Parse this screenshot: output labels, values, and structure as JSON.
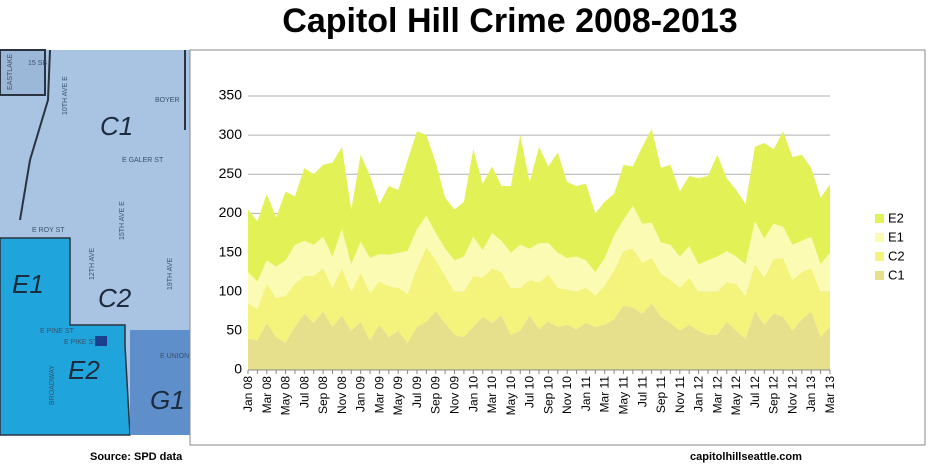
{
  "chart_data": {
    "type": "stacked-area",
    "title": "Capitol Hill Crime 2008-2013",
    "source": "Source: SPD data",
    "credit": "capitolhillseattle.com",
    "categories": [
      "Jan 08",
      null,
      "Mar 08",
      null,
      "May 08",
      null,
      "Jul 08",
      null,
      "Sep 08",
      null,
      "Nov 08",
      null,
      "Jan 09",
      null,
      "Mar 09",
      null,
      "May 09",
      null,
      "Jul 09",
      null,
      "Sep 09",
      null,
      "Nov 09",
      null,
      "Jan 10",
      null,
      "Mar 10",
      null,
      "May 10",
      null,
      "Jul 10",
      null,
      "Sep 10",
      null,
      "Nov 10",
      null,
      "Jan 11",
      null,
      "Mar 11",
      null,
      "May 11",
      null,
      "Jul 11",
      null,
      "Sep 11",
      null,
      "Nov 11",
      null,
      "Jan 12",
      null,
      "Mar 12",
      null,
      "May 12",
      null,
      "Jul 12",
      null,
      "Sep 12",
      null,
      "Nov 12",
      null,
      "Jan 13",
      null,
      "Mar 13"
    ],
    "series": [
      {
        "name": "C1",
        "color": "#e6e08c",
        "values": [
          40,
          38,
          60,
          42,
          35,
          55,
          72,
          60,
          75,
          55,
          70,
          50,
          62,
          38,
          58,
          42,
          50,
          35,
          55,
          62,
          75,
          60,
          45,
          42,
          55,
          68,
          60,
          70,
          45,
          50,
          70,
          52,
          62,
          55,
          58,
          52,
          60,
          55,
          58,
          65,
          82,
          80,
          72,
          85,
          68,
          60,
          50,
          58,
          50,
          45,
          45,
          62,
          50,
          40,
          75,
          58,
          72,
          68,
          50,
          65,
          75,
          42,
          55
        ]
      },
      {
        "name": "C2",
        "color": "#f4f37c",
        "values": [
          45,
          40,
          50,
          50,
          60,
          55,
          48,
          60,
          55,
          50,
          60,
          50,
          62,
          60,
          55,
          65,
          55,
          62,
          75,
          95,
          65,
          60,
          55,
          58,
          65,
          50,
          70,
          55,
          60,
          55,
          45,
          60,
          60,
          50,
          45,
          48,
          45,
          40,
          50,
          62,
          70,
          75,
          65,
          58,
          55,
          55,
          55,
          60,
          50,
          55,
          55,
          50,
          60,
          55,
          60,
          60,
          70,
          75,
          65,
          60,
          55,
          58,
          45
        ]
      },
      {
        "name": "E1",
        "color": "#fbfbb4",
        "values": [
          40,
          35,
          30,
          40,
          45,
          50,
          45,
          40,
          40,
          40,
          50,
          35,
          40,
          45,
          35,
          40,
          45,
          55,
          50,
          40,
          35,
          35,
          40,
          45,
          50,
          35,
          45,
          40,
          45,
          55,
          40,
          50,
          40,
          45,
          40,
          45,
          35,
          30,
          35,
          45,
          40,
          55,
          50,
          45,
          40,
          45,
          40,
          40,
          35,
          40,
          45,
          40,
          35,
          40,
          55,
          50,
          45,
          40,
          45,
          40,
          40,
          35,
          50
        ]
      },
      {
        "name": "E2",
        "color": "#e2f256",
        "values": [
          80,
          77,
          85,
          63,
          88,
          62,
          93,
          90,
          92,
          120,
          105,
          70,
          111,
          105,
          64,
          88,
          80,
          116,
          125,
          103,
          90,
          65,
          65,
          70,
          112,
          85,
          85,
          70,
          85,
          140,
          85,
          123,
          98,
          128,
          97,
          90,
          98,
          75,
          72,
          53,
          70,
          50,
          98,
          120,
          95,
          102,
          83,
          90,
          110,
          108,
          130,
          93,
          85,
          77,
          95,
          122,
          95,
          122,
          112,
          110,
          88,
          85,
          87
        ]
      }
    ],
    "ylim": [
      0,
      350
    ],
    "yticks": [
      0,
      50,
      100,
      150,
      200,
      250,
      300,
      350
    ],
    "grid": true,
    "legend": "right"
  },
  "map": {
    "labels": [
      "C1",
      "E1",
      "C2",
      "E2",
      "G1",
      "10TH AVE E",
      "E GALER ST",
      "15TH AVE E",
      "E ROY ST",
      "12TH AVE",
      "E PINE ST",
      "E PIKE ST",
      "BROADWAY",
      "19TH AVE",
      "BOYER",
      "E UNION",
      "15 SB",
      "EASTLAKE"
    ]
  }
}
